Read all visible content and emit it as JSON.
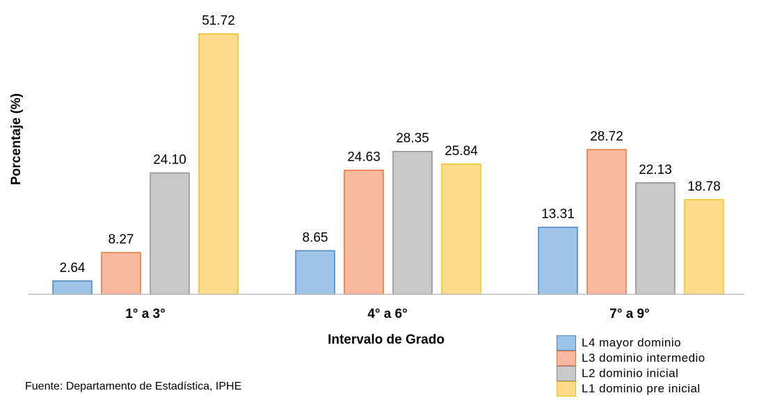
{
  "chart_data": {
    "type": "bar",
    "categories": [
      "1° a 3°",
      "4° a 6°",
      "7° a 9°"
    ],
    "series": [
      {
        "name": "L4 mayor dominio",
        "values": [
          2.64,
          8.65,
          13.31
        ],
        "color": "#9dc3e6",
        "border": "#4a86c5"
      },
      {
        "name": "L3 dominio intermedio",
        "values": [
          8.27,
          24.63,
          28.72
        ],
        "color": "#f8b9a0",
        "border": "#e9733a"
      },
      {
        "name": "L2 dominio inicial",
        "values": [
          24.1,
          28.35,
          22.13
        ],
        "color": "#c9c9c9",
        "border": "#8f8f8f"
      },
      {
        "name": "L1 dominio pre inicial",
        "values": [
          51.72,
          25.84,
          18.78
        ],
        "color": "#ffdc8c",
        "border": "#f2bd1a"
      }
    ],
    "data_labels": [
      [
        "2.64",
        "8.65",
        "13.31"
      ],
      [
        "8.27",
        "24.63",
        "28.72"
      ],
      [
        "24.10",
        "28.35",
        "22.13"
      ],
      [
        "51.72",
        "25.84",
        "18.78"
      ]
    ],
    "xlabel": "Intervalo de Grado",
    "ylabel": "Porcentaje (%)",
    "ylim": [
      0,
      55
    ],
    "grid": false,
    "legend_position": "bottom-right",
    "source_note": "Fuente: Departamento de Estadística, IPHE"
  }
}
